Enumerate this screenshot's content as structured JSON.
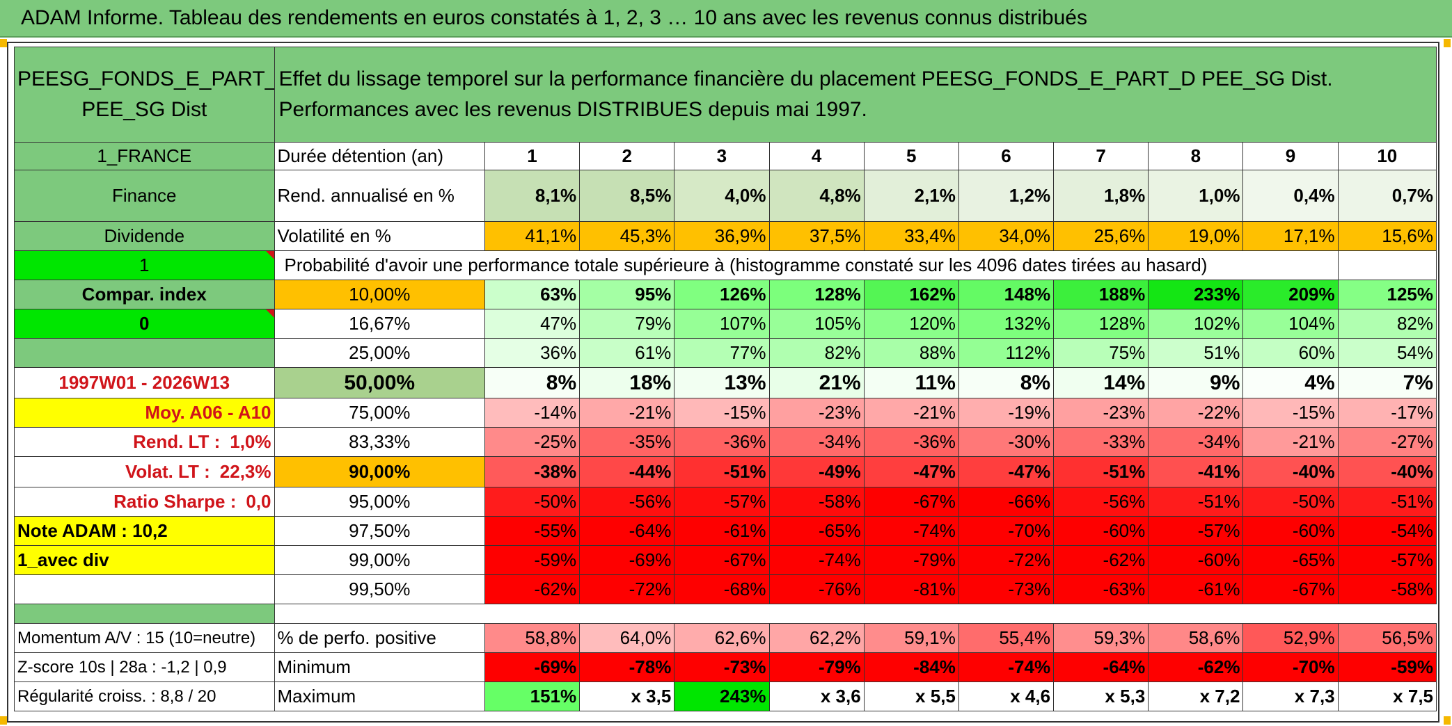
{
  "title": "ADAM Informe. Tableau des rendements en euros constatés à 1, 2, 3 … 10 ans avec les revenus connus distribués",
  "fund": {
    "name_line1": "PEESG_FONDS_E_PART_D",
    "name_line2": "PEE_SG Dist",
    "description": "Effet du lissage temporel sur la performance financière du placement PEESG_FONDS_E_PART_D PEE_SG Dist. Performances avec les revenus DISTRIBUES depuis mai 1997."
  },
  "sidebar": {
    "country": "1_FRANCE",
    "sector": "Finance",
    "income": "Dividende",
    "flag1": "1",
    "compar_index": "Compar. index",
    "flag0": "0",
    "period": "1997W01 - 2026W13",
    "moy": "Moy. A06 - A10",
    "rend_lt_label": "Rend. LT :",
    "rend_lt_value": "1,0%",
    "volat_lt_label": "Volat. LT :",
    "volat_lt_value": "22,3%",
    "sharpe_label": "Ratio Sharpe :",
    "sharpe_value": "0,0",
    "note_adam": "Note ADAM : 10,2",
    "avec_div": "1_avec div",
    "momentum": "Momentum A/V : 15 (10=neutre)",
    "zscore": "Z-score 10s | 28a : -1,2 | 0,9",
    "regularite": "Régularité croiss. : 8,8 / 20"
  },
  "labels": {
    "duree": "Durée détention (an)",
    "rend": "Rend. annualisé en %",
    "volat": "Volatilité en %",
    "proba": "Probabilité d'avoir une performance totale supérieure à (histogramme constaté sur les 4096 dates tirées au hasard)",
    "perfo_pos": "% de perfo. positive",
    "minimum": "Minimum",
    "maximum": "Maximum"
  },
  "years": [
    "1",
    "2",
    "3",
    "4",
    "5",
    "6",
    "7",
    "8",
    "9",
    "10"
  ],
  "rend": [
    "8,1%",
    "8,5%",
    "4,0%",
    "4,8%",
    "2,1%",
    "1,2%",
    "1,8%",
    "1,0%",
    "0,4%",
    "0,7%"
  ],
  "volat": [
    "41,1%",
    "45,3%",
    "36,9%",
    "37,5%",
    "33,4%",
    "34,0%",
    "25,6%",
    "19,0%",
    "17,1%",
    "15,6%"
  ],
  "percentile_rows": [
    {
      "pct": "10,00%",
      "values": [
        "63%",
        "95%",
        "126%",
        "128%",
        "162%",
        "148%",
        "188%",
        "233%",
        "209%",
        "125%"
      ]
    },
    {
      "pct": "16,67%",
      "values": [
        "47%",
        "79%",
        "107%",
        "105%",
        "120%",
        "132%",
        "128%",
        "102%",
        "104%",
        "82%"
      ]
    },
    {
      "pct": "25,00%",
      "values": [
        "36%",
        "61%",
        "77%",
        "82%",
        "88%",
        "112%",
        "75%",
        "51%",
        "60%",
        "54%"
      ]
    },
    {
      "pct": "50,00%",
      "values": [
        "8%",
        "18%",
        "13%",
        "21%",
        "11%",
        "8%",
        "14%",
        "9%",
        "4%",
        "7%"
      ]
    },
    {
      "pct": "75,00%",
      "values": [
        "-14%",
        "-21%",
        "-15%",
        "-23%",
        "-21%",
        "-19%",
        "-23%",
        "-22%",
        "-15%",
        "-17%"
      ]
    },
    {
      "pct": "83,33%",
      "values": [
        "-25%",
        "-35%",
        "-36%",
        "-34%",
        "-36%",
        "-30%",
        "-33%",
        "-34%",
        "-21%",
        "-27%"
      ]
    },
    {
      "pct": "90,00%",
      "values": [
        "-38%",
        "-44%",
        "-51%",
        "-49%",
        "-47%",
        "-47%",
        "-51%",
        "-41%",
        "-40%",
        "-40%"
      ]
    },
    {
      "pct": "95,00%",
      "values": [
        "-50%",
        "-56%",
        "-57%",
        "-58%",
        "-67%",
        "-66%",
        "-56%",
        "-51%",
        "-50%",
        "-51%"
      ]
    },
    {
      "pct": "97,50%",
      "values": [
        "-55%",
        "-64%",
        "-61%",
        "-65%",
        "-74%",
        "-70%",
        "-60%",
        "-57%",
        "-60%",
        "-54%"
      ]
    },
    {
      "pct": "99,00%",
      "values": [
        "-59%",
        "-69%",
        "-67%",
        "-74%",
        "-79%",
        "-72%",
        "-62%",
        "-60%",
        "-65%",
        "-57%"
      ]
    },
    {
      "pct": "99,50%",
      "values": [
        "-62%",
        "-72%",
        "-68%",
        "-76%",
        "-81%",
        "-73%",
        "-63%",
        "-61%",
        "-67%",
        "-58%"
      ]
    }
  ],
  "perfo_pos": [
    "58,8%",
    "64,0%",
    "62,6%",
    "62,2%",
    "59,1%",
    "55,4%",
    "59,3%",
    "58,6%",
    "52,9%",
    "56,5%"
  ],
  "minimum": [
    "-69%",
    "-78%",
    "-73%",
    "-79%",
    "-84%",
    "-74%",
    "-64%",
    "-62%",
    "-70%",
    "-59%"
  ],
  "maximum": [
    "151%",
    "x 3,5",
    "243%",
    "x 3,6",
    "x 5,5",
    "x 4,6",
    "x 5,3",
    "x 7,2",
    "x 7,3",
    "x 7,5"
  ],
  "colors": {
    "header_green": "#7dc97d",
    "light_green": "#c6e0b4",
    "bright_green": "#00e600",
    "orange": "#ffc000",
    "yellow": "#ffff00",
    "red_text": "#d0141a"
  },
  "row_colors": {
    "rend": [
      "#c6e0b4",
      "#c6e0b4",
      "#d6e9c6",
      "#d0e5bf",
      "#e2efd9",
      "#e8f2e1",
      "#e4f0dc",
      "#eaf3e3",
      "#f0f7ec",
      "#edf5e8"
    ],
    "r0": [
      "#cbffcb",
      "#a4ffa4",
      "#80ff80",
      "#7cff7c",
      "#54f554",
      "#64fa64",
      "#3cef3c",
      "#14e614",
      "#2aeb2a",
      "#85ff85"
    ],
    "r1": [
      "#dcffdc",
      "#b8ffb8",
      "#96ff96",
      "#98ff98",
      "#8aff8a",
      "#7dff7d",
      "#82ff82",
      "#9aff9a",
      "#98ff98",
      "#b0ffb0"
    ],
    "r2": [
      "#e5ffe5",
      "#c8ffc8",
      "#b4ffb4",
      "#b0ffb0",
      "#a8ffa8",
      "#94ff94",
      "#b8ffb8",
      "#ccffcc",
      "#c4ffc4",
      "#caffca"
    ],
    "r3": [
      "#f7fff7",
      "#edffed",
      "#f2fff2",
      "#e8ffe8",
      "#f4fff4",
      "#f7fff7",
      "#f0fff0",
      "#f6fff6",
      "#fafffa",
      "#f8fff8"
    ],
    "r4": [
      "#ffbcbc",
      "#ffa8a8",
      "#ffb8b8",
      "#ffa0a0",
      "#ffa8a8",
      "#ffaeae",
      "#ffa0a0",
      "#ffa4a4",
      "#ffb8b8",
      "#ffb2b2"
    ],
    "r5": [
      "#ff8a8a",
      "#ff6464",
      "#ff6262",
      "#ff6a6a",
      "#ff6262",
      "#ff7878",
      "#ff6e6e",
      "#ff6a6a",
      "#ff9a9a",
      "#ff8282"
    ],
    "r6": [
      "#ff5a5a",
      "#ff4848",
      "#ff3030",
      "#ff3838",
      "#ff3e3e",
      "#ff3e3e",
      "#ff3030",
      "#ff5050",
      "#ff5252",
      "#ff5252"
    ],
    "r7": [
      "#ff1c1c",
      "#ff1010",
      "#ff0e0e",
      "#ff0c0c",
      "#fe0000",
      "#fe0000",
      "#ff1010",
      "#ff1c1c",
      "#ff1c1c",
      "#ff1c1c"
    ],
    "r8": [
      "#fe0000",
      "#fe0000",
      "#fe0000",
      "#fe0000",
      "#fe0000",
      "#fe0000",
      "#fe0000",
      "#fe0000",
      "#fe0000",
      "#fe0000"
    ],
    "r9": [
      "#fe0000",
      "#fe0000",
      "#fe0000",
      "#fe0000",
      "#fe0000",
      "#fe0000",
      "#fe0000",
      "#fe0000",
      "#fe0000",
      "#fe0000"
    ],
    "r10": [
      "#fe0000",
      "#fe0000",
      "#fe0000",
      "#fe0000",
      "#fe0000",
      "#fe0000",
      "#fe0000",
      "#fe0000",
      "#fe0000",
      "#fe0000"
    ],
    "perfo": [
      "#ff8a8a",
      "#ffbcbc",
      "#ffacac",
      "#ffa6a6",
      "#ff8c8c",
      "#ff6c6c",
      "#ff8e8e",
      "#ff8888",
      "#ff5858",
      "#ff7070"
    ],
    "min": [
      "#fe0000",
      "#fe0000",
      "#fe0000",
      "#fe0000",
      "#fe0000",
      "#fe0000",
      "#fe0000",
      "#fe0000",
      "#fe0000",
      "#fe0000"
    ],
    "max": [
      "#66ff66",
      "#ffffff",
      "#00e600",
      "#ffffff",
      "#ffffff",
      "#ffffff",
      "#ffffff",
      "#ffffff",
      "#ffffff",
      "#ffffff"
    ]
  }
}
